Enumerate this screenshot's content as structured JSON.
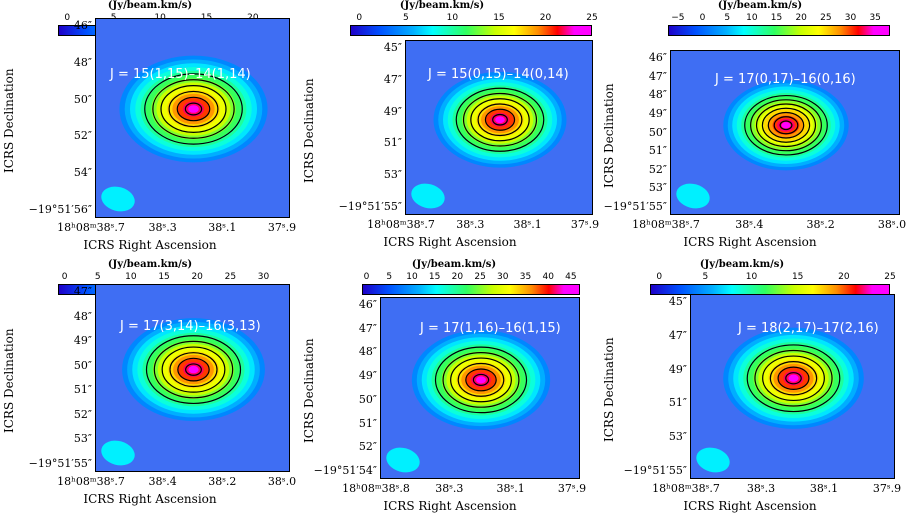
{
  "chart_data": [
    {
      "type": "heatmap",
      "title": "J = 15(1,15)–14(1,14)",
      "colorbar_label": "(Jy/beam.km/s)",
      "colorbar_ticks": [
        "0",
        "5",
        "10",
        "15",
        "20"
      ],
      "colorbar_range": [
        -1,
        24
      ],
      "ytick_labels": [
        "46″",
        "48″",
        "50″",
        "52″",
        "54″",
        "−19°51′56″"
      ],
      "xtick_labels": [
        "18ʰ08ᵐ38ˢ.7",
        "38ˢ.3",
        "38ˢ.1",
        "37ˢ.9"
      ],
      "xlabel": "ICRS Right Ascension",
      "ylabel": "ICRS Declination",
      "contour_levels": 6,
      "peak": 22
    },
    {
      "type": "heatmap",
      "title": "J = 15(0,15)–14(0,14)",
      "colorbar_label": "(Jy/beam.km/s)",
      "colorbar_ticks": [
        "0",
        "5",
        "10",
        "15",
        "20",
        "25"
      ],
      "colorbar_range": [
        -1,
        25
      ],
      "ytick_labels": [
        "45″",
        "47″",
        "49″",
        "51″",
        "53″",
        "−19°51′55″"
      ],
      "xtick_labels": [
        "18ʰ08ᵐ38ˢ.7",
        "38ˢ.3",
        "38ˢ.1",
        "37ˢ.9"
      ],
      "xlabel": "ICRS Right Ascension",
      "ylabel": "ICRS Declination",
      "contour_levels": 6,
      "peak": 24
    },
    {
      "type": "heatmap",
      "title": "J = 17(0,17)–16(0,16)",
      "colorbar_label": "(Jy/beam.km/s)",
      "colorbar_ticks": [
        "−5",
        "0",
        "5",
        "10",
        "15",
        "20",
        "25",
        "30",
        "35"
      ],
      "colorbar_range": [
        -7,
        38
      ],
      "ytick_labels": [
        "46″",
        "47″",
        "48″",
        "49″",
        "50″",
        "51″",
        "52″",
        "53″",
        "−19°51′55″"
      ],
      "xtick_labels": [
        "18ʰ08ᵐ38ˢ.7",
        "38ˢ.4",
        "38ˢ.2",
        "38ˢ.0"
      ],
      "xlabel": "ICRS Right Ascension",
      "ylabel": "ICRS Declination",
      "contour_levels": 7,
      "peak": 36
    },
    {
      "type": "heatmap",
      "title": "J = 17(3,14)–16(3,13)",
      "colorbar_label": "(Jy/beam.km/s)",
      "colorbar_ticks": [
        "0",
        "5",
        "10",
        "15",
        "20",
        "25",
        "30"
      ],
      "colorbar_range": [
        -1,
        34
      ],
      "ytick_labels": [
        "47″",
        "48″",
        "49″",
        "50″",
        "51″",
        "52″",
        "53″",
        "−19°51′55″"
      ],
      "xtick_labels": [
        "18ʰ08ᵐ38ˢ.7",
        "38ˢ.4",
        "38ˢ.2",
        "38ˢ.0"
      ],
      "xlabel": "ICRS Right Ascension",
      "ylabel": "ICRS Declination",
      "contour_levels": 6,
      "peak": 32
    },
    {
      "type": "heatmap",
      "title": "J = 17(1,16)–16(1,15)",
      "colorbar_label": "(Jy/beam.km/s)",
      "colorbar_ticks": [
        "0",
        "5",
        "10",
        "15",
        "20",
        "25",
        "30",
        "35",
        "40",
        "45"
      ],
      "colorbar_range": [
        -1,
        47
      ],
      "ytick_labels": [
        "46″",
        "47″",
        "48″",
        "49″",
        "50″",
        "51″",
        "52″",
        "−19°51′54″"
      ],
      "xtick_labels": [
        "18ʰ08ᵐ38ˢ.8",
        "38ˢ.3",
        "38ˢ.1",
        "37ˢ.9"
      ],
      "xlabel": "ICRS Right Ascension",
      "ylabel": "ICRS Declination",
      "contour_levels": 6,
      "peak": 45
    },
    {
      "type": "heatmap",
      "title": "J = 18(2,17)–17(2,16)",
      "colorbar_label": "(Jy/beam.km/s)",
      "colorbar_ticks": [
        "0",
        "5",
        "10",
        "15",
        "20",
        "25"
      ],
      "colorbar_range": [
        -1,
        25
      ],
      "ytick_labels": [
        "45″",
        "47″",
        "49″",
        "51″",
        "53″",
        "−19°51′55″"
      ],
      "xtick_labels": [
        "18ʰ08ᵐ38ˢ.7",
        "38ˢ.3",
        "38ˢ.1",
        "37ˢ.9"
      ],
      "xlabel": "ICRS Right Ascension",
      "ylabel": "ICRS Declination",
      "contour_levels": 6,
      "peak": 24
    }
  ]
}
